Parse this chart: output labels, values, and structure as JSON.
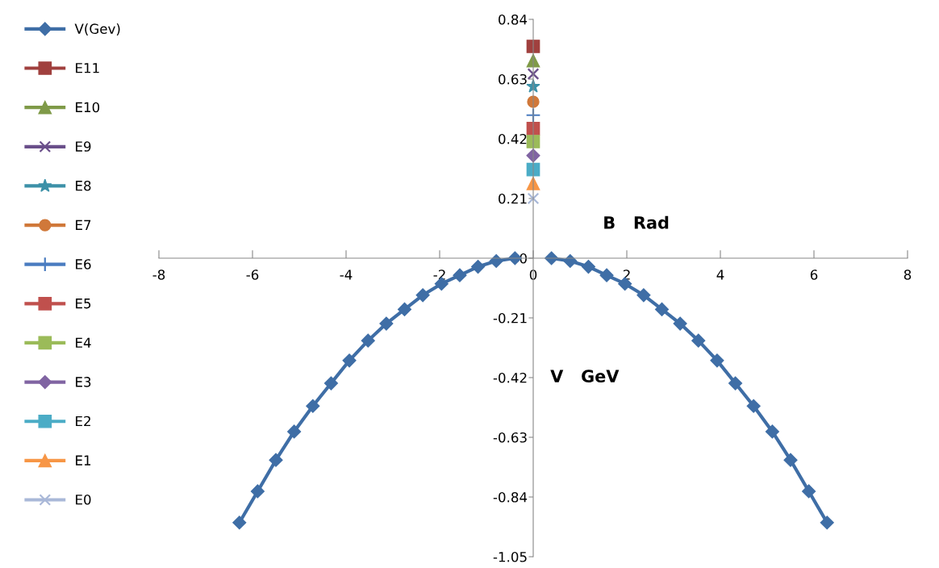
{
  "chart_data": {
    "type": "line",
    "xlabel": "B   Rad",
    "ylabel": "V   GeV",
    "xlim": [
      -8,
      8
    ],
    "xticks": [
      -8,
      -6,
      -4,
      -2,
      0,
      2,
      4,
      6,
      8
    ],
    "ylim": [
      -1.05,
      0.84
    ],
    "yticks": [
      -1.05,
      -0.84,
      -0.63,
      -0.42,
      -0.21,
      0,
      0.21,
      0.42,
      0.63,
      0.84
    ],
    "grid": false,
    "legend": "left",
    "series": [
      {
        "name": "V(Gev)",
        "color": "#3f6ea6",
        "marker": "diamond",
        "x": [
          -6.28,
          -5.89,
          -5.5,
          -5.11,
          -4.71,
          -4.32,
          -3.93,
          -3.53,
          -3.14,
          -2.75,
          -2.36,
          -1.96,
          -1.57,
          -1.18,
          -0.79,
          -0.39,
          0,
          0.39,
          0.79,
          1.18,
          1.57,
          1.96,
          2.36,
          2.75,
          3.14,
          3.53,
          3.93,
          4.32,
          4.71,
          5.11,
          5.5,
          5.89,
          6.28
        ],
        "values": [
          -0.93,
          -0.82,
          -0.71,
          -0.61,
          -0.52,
          -0.44,
          -0.36,
          -0.29,
          -0.23,
          -0.18,
          -0.13,
          -0.09,
          -0.06,
          -0.03,
          -0.01,
          0.0,
          null,
          0.0,
          -0.01,
          -0.03,
          -0.06,
          -0.09,
          -0.13,
          -0.18,
          -0.23,
          -0.29,
          -0.36,
          -0.44,
          -0.52,
          -0.61,
          -0.71,
          -0.82,
          -0.93
        ]
      },
      {
        "name": "E11",
        "color": "#a0403e",
        "marker": "square",
        "x": [
          0
        ],
        "values": [
          0.745
        ]
      },
      {
        "name": "E10",
        "color": "#7f9a48",
        "marker": "triangle",
        "x": [
          0
        ],
        "values": [
          0.695
        ]
      },
      {
        "name": "E9",
        "color": "#6a4f8a",
        "marker": "cross",
        "x": [
          0
        ],
        "values": [
          0.648
        ]
      },
      {
        "name": "E8",
        "color": "#3d91a8",
        "marker": "star",
        "x": [
          0
        ],
        "values": [
          0.604
        ]
      },
      {
        "name": "E7",
        "color": "#d0783a",
        "marker": "circle",
        "x": [
          0
        ],
        "values": [
          0.55
        ]
      },
      {
        "name": "E6",
        "color": "#4a7cc0",
        "marker": "plus",
        "x": [
          0
        ],
        "values": [
          0.503
        ]
      },
      {
        "name": "E5",
        "color": "#c0504d",
        "marker": "square",
        "x": [
          0
        ],
        "values": [
          0.456
        ]
      },
      {
        "name": "E4",
        "color": "#9bbb59",
        "marker": "square",
        "x": [
          0
        ],
        "values": [
          0.41
        ]
      },
      {
        "name": "E3",
        "color": "#8064a2",
        "marker": "diamond",
        "x": [
          0
        ],
        "values": [
          0.361
        ]
      },
      {
        "name": "E2",
        "color": "#4bacc6",
        "marker": "square",
        "x": [
          0
        ],
        "values": [
          0.312
        ]
      },
      {
        "name": "E1",
        "color": "#f79646",
        "marker": "triangle",
        "x": [
          0
        ],
        "values": [
          0.263
        ]
      },
      {
        "name": "E0",
        "color": "#a9b8d8",
        "marker": "cross",
        "x": [
          0
        ],
        "values": [
          0.21
        ]
      }
    ]
  }
}
